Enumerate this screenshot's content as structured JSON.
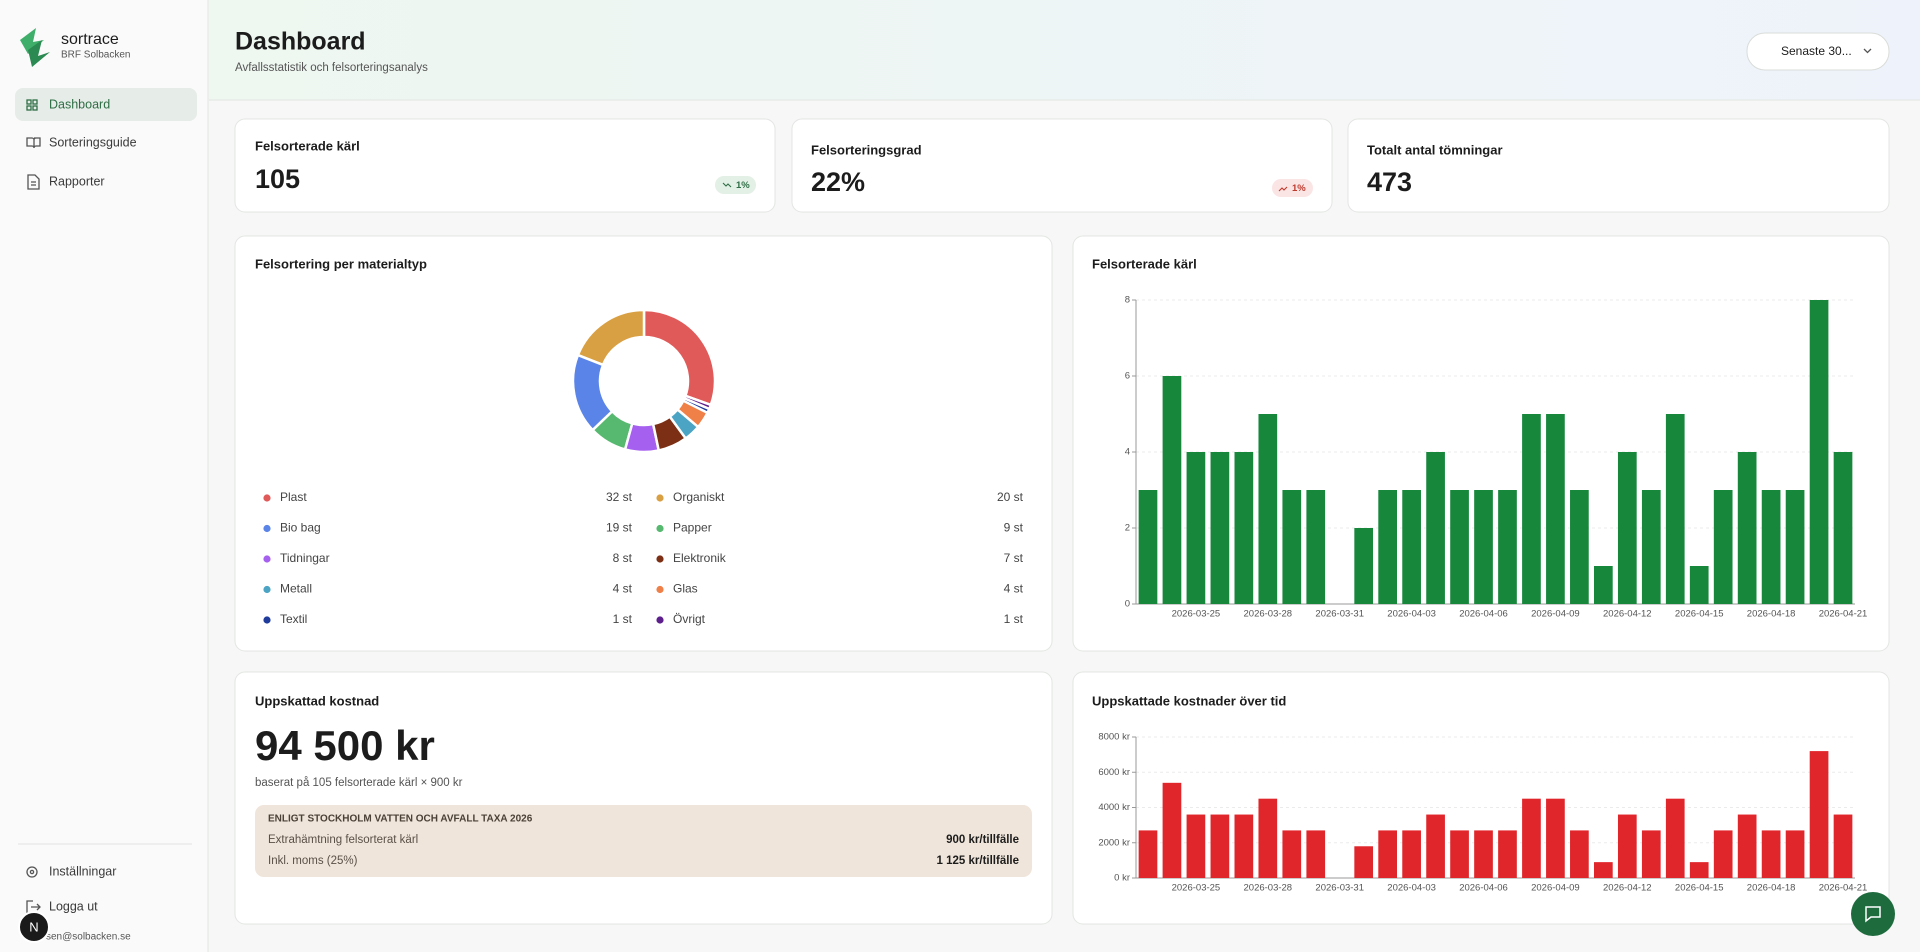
{
  "sidebar": {
    "brand": "sortrace",
    "org": "BRF Solbacken",
    "nav": [
      "Dashboard",
      "Sorteringsguide",
      "Rapporter"
    ],
    "footer": [
      "Inställningar",
      "Logga ut"
    ],
    "email": "sen@solbacken.se",
    "avatar": "N"
  },
  "header": {
    "title": "Dashboard",
    "subtitle": "Avfallsstatistik och felsorteringsanalys",
    "period": "Senaste 30..."
  },
  "kpis": [
    {
      "label": "Felsorterade kärl",
      "value": "105",
      "change": "1%"
    },
    {
      "label": "Felsorteringsgrad",
      "value": "22%",
      "change": "1%"
    },
    {
      "label": "Totalt antal tömningar",
      "value": "473"
    }
  ],
  "material_chart": {
    "type": "pie",
    "title": "Felsortering per materialtyp",
    "categories": [
      "Plast",
      "Organiskt",
      "Bio bag",
      "Papper",
      "Tidningar",
      "Elektronik",
      "Metall",
      "Glas",
      "Textil",
      "Övrigt"
    ],
    "values": [
      32,
      20,
      19,
      9,
      8,
      7,
      4,
      4,
      1,
      1
    ],
    "value_labels": [
      "32 st",
      "20 st",
      "19 st",
      "9 st",
      "8 st",
      "7 st",
      "4 st",
      "4 st",
      "1 st",
      "1 st"
    ],
    "colors": [
      "#e05a5a",
      "#d9a043",
      "#5b84e8",
      "#56b96f",
      "#a660ef",
      "#7c2f14",
      "#4ba4c4",
      "#ee8048",
      "#1f3c9c",
      "#5c1f8c"
    ]
  },
  "count_chart": {
    "type": "bar",
    "title": "Felsorterade kärl",
    "categories": [
      null,
      null,
      "2026-03-25",
      null,
      null,
      "2026-03-28",
      null,
      null,
      "2026-03-31",
      null,
      null,
      "2026-04-03",
      null,
      null,
      "2026-04-06",
      null,
      null,
      "2026-04-09",
      null,
      null,
      "2026-04-12",
      null,
      null,
      "2026-04-15",
      null,
      null,
      "2026-04-18",
      null,
      null,
      "2026-04-21"
    ],
    "values": [
      3,
      6,
      4,
      4,
      4,
      5,
      3,
      3,
      0,
      2,
      3,
      3,
      4,
      3,
      3,
      3,
      5,
      5,
      3,
      1,
      4,
      3,
      5,
      1,
      3,
      4,
      3,
      3,
      8,
      4
    ],
    "color": "#17873c",
    "ylim": [
      0,
      8
    ],
    "yticks": [
      0,
      2,
      4,
      6,
      8
    ],
    "grid": true
  },
  "cost": {
    "title": "Uppskattad kostnad",
    "amount": "94 500 kr",
    "basis": "baserat på 105 felsorterade kärl × 900 kr",
    "tariff": {
      "heading": "ENLIGT STOCKHOLM VATTEN OCH AVFALL TAXA 2026",
      "rows": [
        [
          "Extrahämtning felsorterat kärl",
          "900 kr/tillfälle"
        ],
        [
          "Inkl. moms (25%)",
          "1 125 kr/tillfälle"
        ]
      ]
    }
  },
  "cost_chart": {
    "type": "bar",
    "title": "Uppskattade kostnader över tid",
    "categories": [
      null,
      null,
      "2026-03-25",
      null,
      null,
      "2026-03-28",
      null,
      null,
      "2026-03-31",
      null,
      null,
      "2026-04-03",
      null,
      null,
      "2026-04-06",
      null,
      null,
      "2026-04-09",
      null,
      null,
      "2026-04-12",
      null,
      null,
      "2026-04-15",
      null,
      null,
      "2026-04-18",
      null,
      null,
      "2026-04-21"
    ],
    "values": [
      2700,
      5400,
      3600,
      3600,
      3600,
      4500,
      2700,
      2700,
      0,
      1800,
      2700,
      2700,
      3600,
      2700,
      2700,
      2700,
      4500,
      4500,
      2700,
      900,
      3600,
      2700,
      4500,
      900,
      2700,
      3600,
      2700,
      2700,
      7200,
      3600
    ],
    "color": "#e0262b",
    "ylim": [
      0,
      8000
    ],
    "yticks": [
      {
        "value": 0,
        "label": "0 kr"
      },
      {
        "value": 2000,
        "label": "2000 kr"
      },
      {
        "value": 4000,
        "label": "4000 kr"
      },
      {
        "value": 6000,
        "label": "6000 kr"
      },
      {
        "value": 8000,
        "label": "8000 kr"
      }
    ],
    "grid": true
  }
}
